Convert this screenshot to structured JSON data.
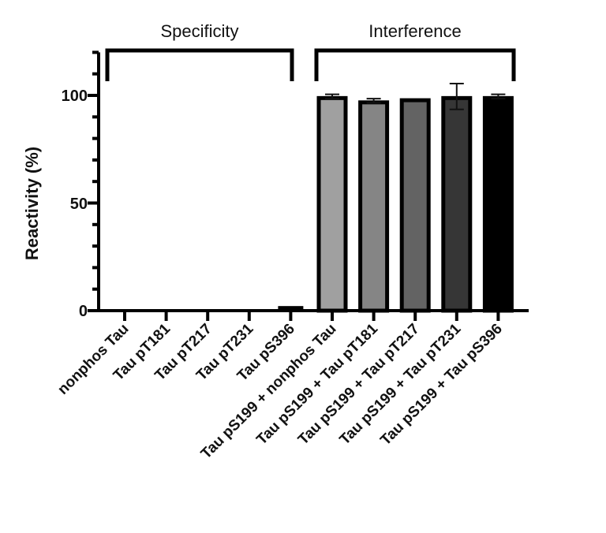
{
  "chart_data": {
    "type": "bar",
    "title": "",
    "xlabel": "",
    "ylabel": "Reactivity (%)",
    "ylim": [
      0,
      120
    ],
    "yticks_major": [
      0,
      50,
      100
    ],
    "yticks_minor_step": 10,
    "grid": false,
    "legend": null,
    "groups": [
      {
        "label": "Specificity",
        "from_index": 0,
        "to_index": 4
      },
      {
        "label": "Interference",
        "from_index": 5,
        "to_index": 9
      }
    ],
    "categories": [
      "nonphos Tau",
      "Tau pT181",
      "Tau pT217",
      "Tau pT231",
      "Tau pS396",
      "Tau pS199 + nonphos Tau",
      "Tau pS199 + Tau pT181",
      "Tau pS199 + Tau pT217",
      "Tau pS199 + Tau pT231",
      "Tau pS199 + Tau pS396"
    ],
    "values": [
      0,
      0,
      0,
      0,
      2.5,
      99.5,
      97.5,
      98.5,
      99.5,
      99.5
    ],
    "errors": [
      0,
      0,
      0,
      0,
      0,
      1,
      1,
      0,
      6,
      1
    ],
    "colors": [
      "#000000",
      "#000000",
      "#000000",
      "#000000",
      "#000000",
      "#a0a0a0",
      "#858585",
      "#636363",
      "#363636",
      "#000000"
    ]
  },
  "labels": {
    "group_specificity": "Specificity",
    "group_interference": "Interference",
    "ylabel": "Reactivity (%)",
    "ytick_0": "0",
    "ytick_50": "50",
    "ytick_100": "100"
  }
}
